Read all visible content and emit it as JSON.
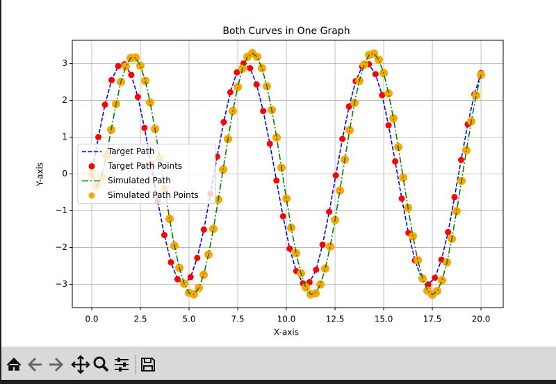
{
  "chart_data": {
    "type": "line",
    "title": "Both Curves in One Graph",
    "xlabel": "X-axis",
    "ylabel": "Y-axis",
    "xlim": [
      -1,
      21.14
    ],
    "ylim": [
      -3.63,
      3.63
    ],
    "xticks": [
      {
        "value": 0,
        "label": "0.0"
      },
      2.5,
      {
        "value": 5,
        "label": "5.0"
      },
      7.5,
      {
        "value": 10,
        "label": "10.0"
      },
      12.5,
      {
        "value": 15,
        "label": "15.0"
      },
      17.5,
      {
        "value": 20,
        "label": "20.0"
      }
    ],
    "yticks": [
      {
        "value": -3,
        "label": "−3"
      },
      {
        "value": -2,
        "label": "−2"
      },
      {
        "value": -1,
        "label": "−1"
      },
      0,
      1,
      2,
      3
    ],
    "grid": true,
    "legend": "center left",
    "series": [
      {
        "name": "Target Path",
        "kind": "line",
        "dash": "dashed",
        "color": "#0000ff",
        "x": [
          0,
          0.34,
          0.68,
          1.02,
          1.36,
          1.69,
          2.03,
          2.37,
          2.71,
          3.05,
          3.39,
          3.73,
          4.07,
          4.41,
          4.75,
          5.08,
          5.42,
          5.76,
          6.1,
          6.44,
          6.78,
          7.12,
          7.46,
          7.8,
          8.14,
          8.47,
          8.81,
          9.15,
          9.49,
          9.83,
          10.17,
          10.51,
          10.85,
          11.19,
          11.53,
          11.86,
          12.2,
          12.54,
          12.88,
          13.22,
          13.56,
          13.9,
          14.24,
          14.58,
          14.92,
          15.25,
          15.59,
          15.93,
          16.27,
          16.61,
          16.95,
          17.29,
          17.63,
          17.97,
          18.31,
          18.64,
          18.98,
          19.32,
          19.66,
          20
        ],
        "values": [
          0,
          1.0,
          1.88,
          2.55,
          2.93,
          2.98,
          2.69,
          2.09,
          1.25,
          0.27,
          -0.74,
          -1.66,
          -2.4,
          -2.86,
          -3.0,
          -2.8,
          -2.28,
          -1.51,
          -0.54,
          0.47,
          1.41,
          2.22,
          2.76,
          3.0,
          2.87,
          2.43,
          1.71,
          0.82,
          -0.18,
          -1.15,
          -2.03,
          -2.64,
          -2.97,
          -2.94,
          -2.6,
          -1.92,
          -1.03,
          -0.04,
          0.95,
          1.83,
          2.52,
          2.92,
          2.98,
          2.71,
          2.14,
          1.32,
          0.34,
          -0.67,
          -1.6,
          -2.35,
          -2.84,
          -3.0,
          -2.82,
          -2.33,
          -1.58,
          -0.63,
          0.38,
          1.35,
          2.16,
          2.74
        ]
      },
      {
        "name": "Target Path Points",
        "kind": "points",
        "color": "#ff0000",
        "x": [
          0,
          0.34,
          0.68,
          1.02,
          1.36,
          1.69,
          2.03,
          2.37,
          2.71,
          3.05,
          3.39,
          3.73,
          4.07,
          4.41,
          4.75,
          5.08,
          5.42,
          5.76,
          6.1,
          6.44,
          6.78,
          7.12,
          7.46,
          7.8,
          8.14,
          8.47,
          8.81,
          9.15,
          9.49,
          9.83,
          10.17,
          10.51,
          10.85,
          11.19,
          11.53,
          11.86,
          12.2,
          12.54,
          12.88,
          13.22,
          13.56,
          13.9,
          14.24,
          14.58,
          14.92,
          15.25,
          15.59,
          15.93,
          16.27,
          16.61,
          16.95,
          17.29,
          17.63,
          17.97,
          18.31,
          18.64,
          18.98,
          19.32,
          19.66,
          20
        ],
        "values": [
          0,
          1.0,
          1.88,
          2.55,
          2.93,
          2.98,
          2.69,
          2.09,
          1.25,
          0.27,
          -0.74,
          -1.66,
          -2.4,
          -2.86,
          -3.0,
          -2.8,
          -2.28,
          -1.51,
          -0.54,
          0.47,
          1.41,
          2.22,
          2.76,
          3.0,
          2.87,
          2.43,
          1.71,
          0.82,
          -0.18,
          -1.15,
          -2.03,
          -2.64,
          -2.97,
          -2.94,
          -2.6,
          -1.92,
          -1.03,
          -0.04,
          0.95,
          1.83,
          2.52,
          2.92,
          2.98,
          2.71,
          2.14,
          1.32,
          0.34,
          -0.67,
          -1.6,
          -2.35,
          -2.84,
          -3.0,
          -2.82,
          -2.33,
          -1.58,
          -0.63,
          0.38,
          1.35,
          2.16,
          2.74
        ]
      },
      {
        "name": "Simulated Path",
        "kind": "line",
        "dash": "dashdot",
        "color": "#008000",
        "x": [
          0,
          0.25,
          0.5,
          0.75,
          1,
          1.25,
          1.5,
          1.75,
          2,
          2.25,
          2.5,
          2.75,
          3,
          3.25,
          3.5,
          3.75,
          4,
          4.25,
          4.5,
          4.75,
          5,
          5.25,
          5.5,
          5.75,
          6,
          6.25,
          6.5,
          6.75,
          7,
          7.25,
          7.5,
          7.75,
          8,
          8.25,
          8.5,
          8.75,
          9,
          9.25,
          9.5,
          9.75,
          10,
          10.25,
          10.5,
          10.75,
          11,
          11.25,
          11.5,
          11.75,
          12,
          12.25,
          12.5,
          12.75,
          13,
          13.25,
          13.5,
          13.75,
          14,
          14.25,
          14.5,
          14.75,
          15,
          15.25,
          15.5,
          15.75,
          16,
          16.25,
          16.5,
          16.75,
          17,
          17.25,
          17.5,
          17.75,
          18,
          18.25,
          18.5,
          18.75,
          19,
          19.25,
          19.5,
          19.75,
          20
        ],
        "values": [
          0,
          -0.33,
          -0.08,
          0.5,
          1.2,
          1.9,
          2.5,
          2.92,
          3.15,
          3.16,
          2.94,
          2.53,
          1.94,
          1.22,
          0.42,
          -0.41,
          -1.22,
          -1.95,
          -2.55,
          -2.98,
          -3.23,
          -3.27,
          -3.1,
          -2.74,
          -2.19,
          -1.49,
          -0.7,
          0.12,
          0.95,
          1.71,
          2.36,
          2.86,
          3.18,
          3.28,
          3.18,
          2.87,
          2.38,
          1.74,
          0.99,
          0.17,
          -0.67,
          -1.46,
          -2.15,
          -2.7,
          -3.08,
          -3.27,
          -3.24,
          -3.0,
          -2.57,
          -1.97,
          -1.25,
          -0.45,
          0.39,
          1.19,
          1.93,
          2.53,
          2.97,
          3.23,
          3.27,
          3.1,
          2.74,
          2.19,
          1.51,
          0.73,
          -0.1,
          -0.92,
          -1.69,
          -2.34,
          -2.84,
          -3.17,
          -3.28,
          -3.18,
          -2.89,
          -2.4,
          -1.76,
          -1.01,
          -0.19,
          0.64,
          1.43,
          2.13,
          2.69
        ]
      },
      {
        "name": "Simulated Path Points",
        "kind": "points",
        "color": "#ffa500",
        "x": [
          0,
          0.25,
          0.5,
          0.75,
          1,
          1.25,
          1.5,
          1.75,
          2,
          2.25,
          2.5,
          2.75,
          3,
          3.25,
          3.5,
          3.75,
          4,
          4.25,
          4.5,
          4.75,
          5,
          5.25,
          5.5,
          5.75,
          6,
          6.25,
          6.5,
          6.75,
          7,
          7.25,
          7.5,
          7.75,
          8,
          8.25,
          8.5,
          8.75,
          9,
          9.25,
          9.5,
          9.75,
          10,
          10.25,
          10.5,
          10.75,
          11,
          11.25,
          11.5,
          11.75,
          12,
          12.25,
          12.5,
          12.75,
          13,
          13.25,
          13.5,
          13.75,
          14,
          14.25,
          14.5,
          14.75,
          15,
          15.25,
          15.5,
          15.75,
          16,
          16.25,
          16.5,
          16.75,
          17,
          17.25,
          17.5,
          17.75,
          18,
          18.25,
          18.5,
          18.75,
          19,
          19.25,
          19.5,
          19.75,
          20
        ],
        "values": [
          0,
          -0.33,
          -0.08,
          0.5,
          1.2,
          1.9,
          2.5,
          2.92,
          3.15,
          3.16,
          2.94,
          2.53,
          1.94,
          1.22,
          0.42,
          -0.41,
          -1.22,
          -1.95,
          -2.55,
          -2.98,
          -3.23,
          -3.27,
          -3.1,
          -2.74,
          -2.19,
          -1.49,
          -0.7,
          0.12,
          0.95,
          1.71,
          2.36,
          2.86,
          3.18,
          3.28,
          3.18,
          2.87,
          2.38,
          1.74,
          0.99,
          0.17,
          -0.67,
          -1.46,
          -2.15,
          -2.7,
          -3.08,
          -3.27,
          -3.24,
          -3.0,
          -2.57,
          -1.97,
          -1.25,
          -0.45,
          0.39,
          1.19,
          1.93,
          2.53,
          2.97,
          3.23,
          3.27,
          3.1,
          2.74,
          2.19,
          1.51,
          0.73,
          -0.1,
          -0.92,
          -1.69,
          -2.34,
          -2.84,
          -3.17,
          -3.28,
          -3.18,
          -2.89,
          -2.4,
          -1.76,
          -1.01,
          -0.19,
          0.64,
          1.43,
          2.13,
          2.69
        ]
      }
    ]
  }
}
